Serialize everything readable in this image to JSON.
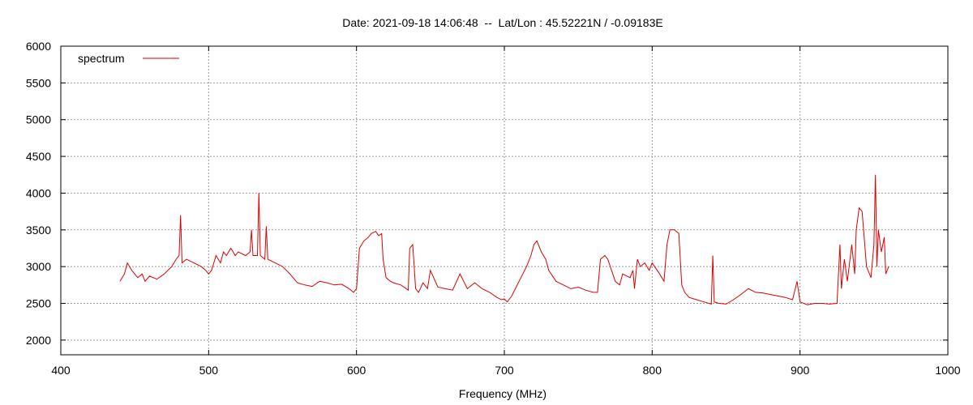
{
  "chart_data": {
    "type": "line",
    "title": "Date: 2021-09-18 14:06:48  --  Lat/Lon : 45.52221N / -0.09183E",
    "xlabel": "Frequency (MHz)",
    "ylabel": "",
    "xlim": [
      400,
      1000
    ],
    "ylim": [
      1800,
      6000
    ],
    "x_ticks": [
      400,
      500,
      600,
      700,
      800,
      900,
      1000
    ],
    "y_ticks": [
      2000,
      2500,
      3000,
      3500,
      4000,
      4500,
      5000,
      5500,
      6000
    ],
    "grid": true,
    "legend": "top-left",
    "series": [
      {
        "name": "spectrum",
        "color": "#dd0000",
        "x": [
          440,
          443,
          445,
          448,
          452,
          455,
          457,
          460,
          465,
          470,
          475,
          478,
          480,
          481,
          482,
          485,
          490,
          495,
          498,
          500,
          502,
          505,
          508,
          510,
          512,
          515,
          518,
          520,
          525,
          528,
          529,
          530,
          533,
          534,
          535,
          538,
          539,
          540,
          545,
          550,
          555,
          560,
          565,
          570,
          575,
          580,
          585,
          590,
          595,
          598,
          600,
          602,
          605,
          608,
          610,
          613,
          615,
          617,
          618,
          620,
          623,
          625,
          630,
          635,
          636,
          638,
          640,
          642,
          645,
          648,
          650,
          655,
          660,
          665,
          670,
          675,
          680,
          685,
          690,
          695,
          698,
          700,
          702,
          705,
          710,
          715,
          718,
          720,
          722,
          725,
          728,
          730,
          735,
          740,
          745,
          750,
          755,
          760,
          763,
          765,
          768,
          770,
          775,
          778,
          780,
          785,
          787,
          788,
          790,
          792,
          795,
          798,
          800,
          805,
          808,
          810,
          812,
          815,
          818,
          820,
          822,
          825,
          830,
          835,
          840,
          841,
          842,
          845,
          850,
          855,
          860,
          865,
          870,
          875,
          880,
          885,
          890,
          895,
          898,
          900,
          905,
          910,
          915,
          920,
          925,
          927,
          928,
          930,
          932,
          935,
          937,
          938,
          940,
          942,
          945,
          948,
          950,
          951,
          952,
          953,
          955,
          957,
          958,
          960
        ],
        "values": [
          2800,
          2900,
          3050,
          2950,
          2850,
          2900,
          2800,
          2870,
          2830,
          2900,
          3000,
          3100,
          3150,
          3700,
          3050,
          3100,
          3050,
          3000,
          2950,
          2900,
          2950,
          3150,
          3050,
          3200,
          3150,
          3250,
          3150,
          3200,
          3150,
          3200,
          3500,
          3150,
          3150,
          4000,
          3150,
          3100,
          3550,
          3100,
          3050,
          3000,
          2900,
          2780,
          2750,
          2730,
          2800,
          2780,
          2750,
          2760,
          2700,
          2650,
          2700,
          3250,
          3350,
          3400,
          3450,
          3480,
          3420,
          3450,
          3100,
          2850,
          2800,
          2780,
          2750,
          2680,
          3250,
          3300,
          2700,
          2650,
          2780,
          2700,
          2950,
          2720,
          2700,
          2680,
          2900,
          2700,
          2780,
          2700,
          2650,
          2580,
          2550,
          2560,
          2520,
          2600,
          2800,
          3000,
          3150,
          3300,
          3350,
          3200,
          3100,
          2950,
          2800,
          2750,
          2700,
          2720,
          2680,
          2650,
          2650,
          3100,
          3150,
          3100,
          2800,
          2750,
          2900,
          2850,
          2950,
          2700,
          3100,
          3000,
          3050,
          2950,
          3050,
          2900,
          2800,
          3300,
          3500,
          3500,
          3450,
          2750,
          2650,
          2580,
          2550,
          2520,
          2490,
          3150,
          2520,
          2500,
          2490,
          2550,
          2620,
          2700,
          2650,
          2640,
          2620,
          2600,
          2580,
          2550,
          2800,
          2520,
          2480,
          2500,
          2500,
          2490,
          2500,
          3300,
          2700,
          3100,
          2800,
          3300,
          2900,
          3500,
          3800,
          3750,
          3000,
          2850,
          3300,
          4250,
          3000,
          3500,
          3200,
          3400,
          2900,
          3000
        ]
      }
    ]
  }
}
